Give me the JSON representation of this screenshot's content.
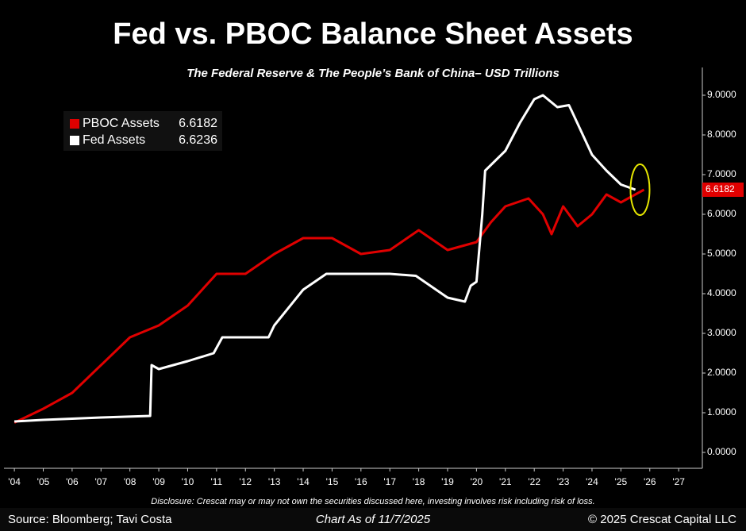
{
  "chart_data": {
    "type": "line",
    "title": "Fed vs. PBOC Balance Sheet Assets",
    "subtitle": "The Federal Reserve & The People’s Bank of China– USD Trillions",
    "disclosure": "Disclosure: Crescat may or may not own the securities discussed here, investing involves risk including risk of loss.",
    "source": "Source: Bloomberg; Tavi Costa",
    "chart_date": "Chart As of 11/7/2025",
    "copyright": "© 2025 Crescat Capital LLC",
    "xlim": [
      2003.64,
      2027.82
    ],
    "ylim": [
      -0.4,
      9.7
    ],
    "xticks": [
      {
        "value": 2004,
        "label": "'04"
      },
      {
        "value": 2005,
        "label": "'05"
      },
      {
        "value": 2006,
        "label": "'06"
      },
      {
        "value": 2007,
        "label": "'07"
      },
      {
        "value": 2008,
        "label": "'08"
      },
      {
        "value": 2009,
        "label": "'09"
      },
      {
        "value": 2010,
        "label": "'10"
      },
      {
        "value": 2011,
        "label": "'11"
      },
      {
        "value": 2012,
        "label": "'12"
      },
      {
        "value": 2013,
        "label": "'13"
      },
      {
        "value": 2014,
        "label": "'14"
      },
      {
        "value": 2015,
        "label": "'15"
      },
      {
        "value": 2016,
        "label": "'16"
      },
      {
        "value": 2017,
        "label": "'17"
      },
      {
        "value": 2018,
        "label": "'18"
      },
      {
        "value": 2019,
        "label": "'19"
      },
      {
        "value": 2020,
        "label": "'20"
      },
      {
        "value": 2021,
        "label": "'21"
      },
      {
        "value": 2022,
        "label": "'22"
      },
      {
        "value": 2023,
        "label": "'23"
      },
      {
        "value": 2024,
        "label": "'24"
      },
      {
        "value": 2025,
        "label": "'25"
      },
      {
        "value": 2026,
        "label": "'26"
      },
      {
        "value": 2027,
        "label": "'27"
      }
    ],
    "yticks": [
      {
        "value": 0,
        "label": "0.0000"
      },
      {
        "value": 1,
        "label": "1.0000"
      },
      {
        "value": 2,
        "label": "2.0000"
      },
      {
        "value": 3,
        "label": "3.0000"
      },
      {
        "value": 4,
        "label": "4.0000"
      },
      {
        "value": 5,
        "label": "5.0000"
      },
      {
        "value": 6,
        "label": "6.0000"
      },
      {
        "value": 7,
        "label": "7.0000"
      },
      {
        "value": 8,
        "label": "8.0000"
      },
      {
        "value": 9,
        "label": "9.0000"
      }
    ],
    "series": [
      {
        "name": "PBOC Assets",
        "color": "#e00000",
        "last_value": 6.6182,
        "x": [
          2004,
          2005,
          2006,
          2007,
          2008,
          2009,
          2010,
          2011,
          2012,
          2013,
          2014,
          2015,
          2016,
          2017,
          2018,
          2019,
          2020,
          2020.5,
          2021,
          2021.8,
          2022.3,
          2022.6,
          2023,
          2023.5,
          2024,
          2024.5,
          2025,
          2025.8
        ],
        "values": [
          0.75,
          1.1,
          1.5,
          2.2,
          2.9,
          3.2,
          3.7,
          4.5,
          4.5,
          5.0,
          5.4,
          5.4,
          5.0,
          5.1,
          5.6,
          5.1,
          5.3,
          5.8,
          6.2,
          6.4,
          6.0,
          5.5,
          6.2,
          5.7,
          6.0,
          6.5,
          6.3,
          6.62
        ]
      },
      {
        "name": "Fed Assets",
        "color": "#ffffff",
        "last_value": 6.6236,
        "x": [
          2004,
          2005,
          2006,
          2007,
          2008.7,
          2008.75,
          2009,
          2010,
          2010.9,
          2011.2,
          2012,
          2012.8,
          2013,
          2014,
          2014.8,
          2016,
          2017,
          2017.9,
          2019,
          2019.6,
          2019.8,
          2020.0,
          2020.2,
          2020.3,
          2021,
          2021.5,
          2022,
          2022.3,
          2022.8,
          2023.2,
          2023.3,
          2024,
          2024.5,
          2025,
          2025.5
        ],
        "values": [
          0.78,
          0.82,
          0.85,
          0.88,
          0.92,
          2.2,
          2.1,
          2.3,
          2.5,
          2.9,
          2.9,
          2.9,
          3.2,
          4.1,
          4.5,
          4.5,
          4.5,
          4.45,
          3.9,
          3.8,
          4.2,
          4.3,
          6.0,
          7.1,
          7.6,
          8.3,
          8.9,
          9.0,
          8.7,
          8.75,
          8.6,
          7.5,
          7.1,
          6.75,
          6.62
        ]
      }
    ]
  }
}
